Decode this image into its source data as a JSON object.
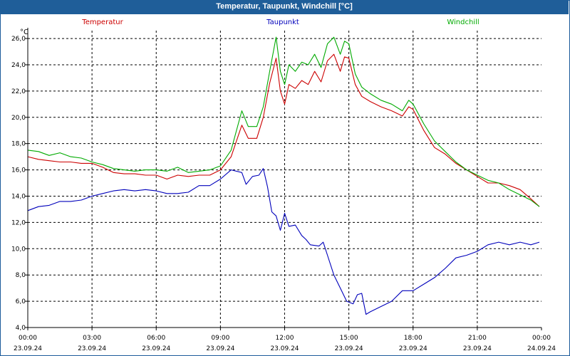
{
  "window": {
    "title": "Temperatur, Taupunkt, Windchill [°C]"
  },
  "chart_data": {
    "type": "line",
    "title": "Temperatur, Taupunkt, Windchill [°C]",
    "ylabel": "°C",
    "xlabel": "",
    "ylim": [
      4.0,
      26.6
    ],
    "xlim": [
      0,
      24
    ],
    "y_ticks": [
      4.0,
      6.0,
      8.0,
      10.0,
      12.0,
      14.0,
      16.0,
      18.0,
      20.0,
      22.0,
      24.0,
      26.0
    ],
    "y_tick_labels": [
      "4,0",
      "6,0",
      "8,0",
      "10,0",
      "12,0",
      "14,0",
      "16,0",
      "18,0",
      "20,0",
      "22,0",
      "24,0",
      "26,0"
    ],
    "x_ticks": [
      0,
      3,
      6,
      9,
      12,
      15,
      18,
      21,
      24
    ],
    "x_tick_times": [
      "00:00",
      "03:00",
      "06:00",
      "09:00",
      "12:00",
      "15:00",
      "18:00",
      "21:00",
      "00:00"
    ],
    "x_tick_dates": [
      "23.09.24",
      "23.09.24",
      "23.09.24",
      "23.09.24",
      "23.09.24",
      "23.09.24",
      "23.09.24",
      "23.09.24",
      "24.09.24"
    ],
    "grid": true,
    "legend_placement": "top",
    "series": [
      {
        "name": "Temperatur",
        "color": "#cc0000",
        "points": [
          [
            0.0,
            17.0
          ],
          [
            0.5,
            16.8
          ],
          [
            1.0,
            16.7
          ],
          [
            1.5,
            16.6
          ],
          [
            2.0,
            16.6
          ],
          [
            2.5,
            16.5
          ],
          [
            3.0,
            16.5
          ],
          [
            3.5,
            16.2
          ],
          [
            4.0,
            15.8
          ],
          [
            4.5,
            15.7
          ],
          [
            5.0,
            15.7
          ],
          [
            5.5,
            15.6
          ],
          [
            6.0,
            15.6
          ],
          [
            6.5,
            15.3
          ],
          [
            7.0,
            15.6
          ],
          [
            7.5,
            15.5
          ],
          [
            8.0,
            15.6
          ],
          [
            8.5,
            15.6
          ],
          [
            9.0,
            16.0
          ],
          [
            9.5,
            17.0
          ],
          [
            10.0,
            19.4
          ],
          [
            10.3,
            18.4
          ],
          [
            10.7,
            18.4
          ],
          [
            11.0,
            20.0
          ],
          [
            11.3,
            22.6
          ],
          [
            11.6,
            24.5
          ],
          [
            11.8,
            22.0
          ],
          [
            12.0,
            21.0
          ],
          [
            12.2,
            22.5
          ],
          [
            12.5,
            22.2
          ],
          [
            12.8,
            22.8
          ],
          [
            13.1,
            22.5
          ],
          [
            13.4,
            23.5
          ],
          [
            13.7,
            22.7
          ],
          [
            14.0,
            24.3
          ],
          [
            14.3,
            24.8
          ],
          [
            14.6,
            23.5
          ],
          [
            14.8,
            24.6
          ],
          [
            15.0,
            24.5
          ],
          [
            15.3,
            22.5
          ],
          [
            15.6,
            21.6
          ],
          [
            16.0,
            21.2
          ],
          [
            16.5,
            20.8
          ],
          [
            17.0,
            20.5
          ],
          [
            17.5,
            20.1
          ],
          [
            17.8,
            20.8
          ],
          [
            18.0,
            20.6
          ],
          [
            18.5,
            19.0
          ],
          [
            19.0,
            17.7
          ],
          [
            19.5,
            17.2
          ],
          [
            20.0,
            16.5
          ],
          [
            20.5,
            16.0
          ],
          [
            21.0,
            15.5
          ],
          [
            21.5,
            15.0
          ],
          [
            22.0,
            15.0
          ],
          [
            22.5,
            14.8
          ],
          [
            23.0,
            14.5
          ],
          [
            23.5,
            13.8
          ],
          [
            23.9,
            13.2
          ]
        ]
      },
      {
        "name": "Taupunkt",
        "color": "#0000bb",
        "points": [
          [
            0.0,
            12.9
          ],
          [
            0.5,
            13.2
          ],
          [
            1.0,
            13.3
          ],
          [
            1.5,
            13.6
          ],
          [
            2.0,
            13.6
          ],
          [
            2.5,
            13.7
          ],
          [
            3.0,
            14.0
          ],
          [
            3.5,
            14.2
          ],
          [
            4.0,
            14.4
          ],
          [
            4.5,
            14.5
          ],
          [
            5.0,
            14.4
          ],
          [
            5.5,
            14.5
          ],
          [
            6.0,
            14.4
          ],
          [
            6.5,
            14.2
          ],
          [
            7.0,
            14.2
          ],
          [
            7.5,
            14.3
          ],
          [
            8.0,
            14.8
          ],
          [
            8.5,
            14.8
          ],
          [
            9.0,
            15.3
          ],
          [
            9.5,
            16.0
          ],
          [
            10.0,
            15.8
          ],
          [
            10.2,
            14.9
          ],
          [
            10.5,
            15.5
          ],
          [
            10.8,
            15.6
          ],
          [
            11.0,
            16.1
          ],
          [
            11.2,
            14.7
          ],
          [
            11.4,
            12.8
          ],
          [
            11.6,
            12.5
          ],
          [
            11.8,
            11.4
          ],
          [
            12.0,
            12.7
          ],
          [
            12.2,
            11.7
          ],
          [
            12.5,
            11.8
          ],
          [
            12.8,
            11.0
          ],
          [
            13.0,
            10.7
          ],
          [
            13.2,
            10.3
          ],
          [
            13.6,
            10.2
          ],
          [
            13.8,
            10.5
          ],
          [
            14.0,
            9.5
          ],
          [
            14.3,
            8.0
          ],
          [
            14.6,
            7.0
          ],
          [
            14.9,
            6.0
          ],
          [
            15.2,
            5.8
          ],
          [
            15.4,
            6.5
          ],
          [
            15.6,
            6.6
          ],
          [
            15.8,
            5.0
          ],
          [
            16.0,
            5.2
          ],
          [
            16.5,
            5.6
          ],
          [
            17.0,
            6.0
          ],
          [
            17.5,
            6.8
          ],
          [
            18.0,
            6.8
          ],
          [
            18.5,
            7.3
          ],
          [
            19.0,
            7.8
          ],
          [
            19.5,
            8.5
          ],
          [
            20.0,
            9.3
          ],
          [
            20.5,
            9.5
          ],
          [
            21.0,
            9.8
          ],
          [
            21.5,
            10.3
          ],
          [
            22.0,
            10.5
          ],
          [
            22.5,
            10.3
          ],
          [
            23.0,
            10.5
          ],
          [
            23.5,
            10.3
          ],
          [
            23.9,
            10.5
          ]
        ]
      },
      {
        "name": "Windchill",
        "color": "#00aa00",
        "points": [
          [
            0.0,
            17.5
          ],
          [
            0.5,
            17.4
          ],
          [
            1.0,
            17.1
          ],
          [
            1.5,
            17.3
          ],
          [
            2.0,
            17.0
          ],
          [
            2.5,
            16.9
          ],
          [
            3.0,
            16.6
          ],
          [
            3.5,
            16.4
          ],
          [
            4.0,
            16.1
          ],
          [
            4.5,
            16.0
          ],
          [
            5.0,
            15.9
          ],
          [
            5.5,
            16.0
          ],
          [
            6.0,
            16.0
          ],
          [
            6.5,
            15.9
          ],
          [
            7.0,
            16.2
          ],
          [
            7.5,
            15.8
          ],
          [
            8.0,
            15.9
          ],
          [
            8.5,
            16.0
          ],
          [
            9.0,
            16.3
          ],
          [
            9.5,
            17.5
          ],
          [
            10.0,
            20.5
          ],
          [
            10.3,
            19.3
          ],
          [
            10.7,
            19.3
          ],
          [
            11.0,
            20.8
          ],
          [
            11.3,
            23.5
          ],
          [
            11.6,
            26.1
          ],
          [
            11.8,
            23.5
          ],
          [
            12.0,
            22.5
          ],
          [
            12.2,
            24.0
          ],
          [
            12.5,
            23.5
          ],
          [
            12.8,
            24.2
          ],
          [
            13.1,
            24.0
          ],
          [
            13.4,
            24.8
          ],
          [
            13.7,
            23.8
          ],
          [
            14.0,
            25.6
          ],
          [
            14.3,
            26.1
          ],
          [
            14.6,
            24.8
          ],
          [
            14.8,
            25.8
          ],
          [
            15.0,
            25.6
          ],
          [
            15.3,
            23.3
          ],
          [
            15.6,
            22.3
          ],
          [
            16.0,
            21.8
          ],
          [
            16.5,
            21.3
          ],
          [
            17.0,
            21.0
          ],
          [
            17.5,
            20.5
          ],
          [
            17.8,
            21.3
          ],
          [
            18.0,
            21.0
          ],
          [
            18.5,
            19.5
          ],
          [
            19.0,
            18.2
          ],
          [
            19.5,
            17.4
          ],
          [
            20.0,
            16.6
          ],
          [
            20.5,
            16.0
          ],
          [
            21.0,
            15.6
          ],
          [
            21.5,
            15.2
          ],
          [
            22.0,
            15.0
          ],
          [
            22.5,
            14.5
          ],
          [
            23.0,
            14.1
          ],
          [
            23.5,
            13.7
          ],
          [
            23.9,
            13.2
          ]
        ]
      }
    ]
  }
}
